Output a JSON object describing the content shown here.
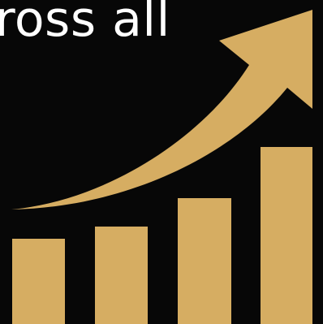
{
  "headline": {
    "text": "ross all"
  },
  "graphic": {
    "icon": "growth-chart-icon",
    "bar_count": 4,
    "trend": "increasing",
    "colors": {
      "background": "#070707",
      "text": "#ffffff",
      "accent": "#d6ad62"
    }
  }
}
